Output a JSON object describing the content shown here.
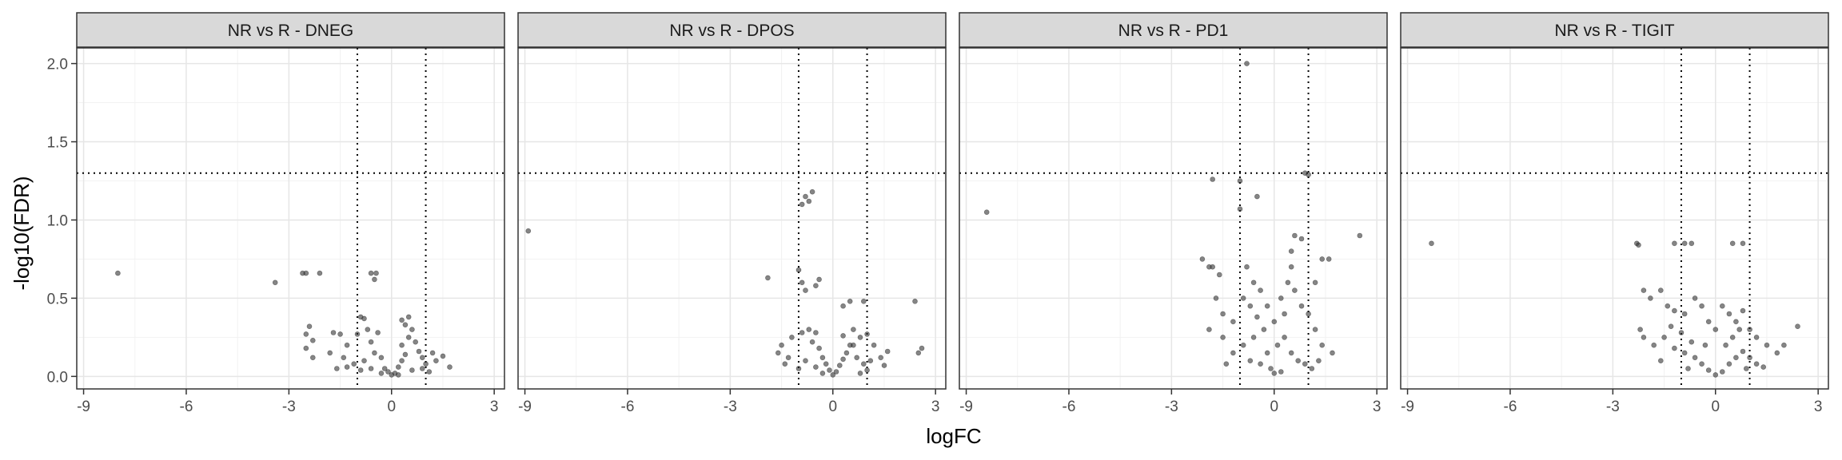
{
  "chart_data": {
    "type": "scatter",
    "title": "",
    "xlabel": "logFC",
    "ylabel": "-log10(FDR)",
    "xlim": [
      -9.2,
      3.3
    ],
    "ylim": [
      -0.08,
      2.1
    ],
    "x_ticks": [
      "-9",
      "-6",
      "-3",
      "0",
      "3"
    ],
    "x_tick_values": [
      -9,
      -6,
      -3,
      0,
      3
    ],
    "y_ticks": [
      "0.0",
      "0.5",
      "1.0",
      "1.5",
      "2.0"
    ],
    "y_tick_values": [
      0.0,
      0.5,
      1.0,
      1.5,
      2.0
    ],
    "reference_lines": {
      "fdr_threshold": 1.3,
      "logfc_low": -1,
      "logfc_high": 1
    },
    "point_color": "#333333",
    "point_opacity": 0.6,
    "panels": [
      {
        "label": "NR vs R - DNEG",
        "points": [
          [
            -8.0,
            0.66
          ],
          [
            -3.4,
            0.6
          ],
          [
            -2.6,
            0.66
          ],
          [
            -2.5,
            0.66
          ],
          [
            -2.1,
            0.66
          ],
          [
            -0.6,
            0.66
          ],
          [
            -0.5,
            0.62
          ],
          [
            -0.45,
            0.66
          ],
          [
            -2.4,
            0.32
          ],
          [
            -2.5,
            0.27
          ],
          [
            -2.3,
            0.23
          ],
          [
            -2.5,
            0.18
          ],
          [
            -2.3,
            0.12
          ],
          [
            -1.7,
            0.28
          ],
          [
            -1.5,
            0.27
          ],
          [
            -1.3,
            0.2
          ],
          [
            -1.8,
            0.15
          ],
          [
            -1.4,
            0.12
          ],
          [
            -0.9,
            0.38
          ],
          [
            -0.8,
            0.37
          ],
          [
            -0.7,
            0.3
          ],
          [
            -1.0,
            0.27
          ],
          [
            -0.6,
            0.22
          ],
          [
            -0.4,
            0.28
          ],
          [
            -0.5,
            0.15
          ],
          [
            -0.8,
            0.1
          ],
          [
            -1.1,
            0.08
          ],
          [
            -0.3,
            0.12
          ],
          [
            -0.2,
            0.05
          ],
          [
            -0.1,
            0.03
          ],
          [
            0.0,
            0.01
          ],
          [
            0.1,
            0.02
          ],
          [
            0.2,
            0.06
          ],
          [
            0.3,
            0.1
          ],
          [
            0.4,
            0.14
          ],
          [
            0.3,
            0.2
          ],
          [
            0.5,
            0.25
          ],
          [
            0.4,
            0.33
          ],
          [
            0.6,
            0.3
          ],
          [
            0.7,
            0.22
          ],
          [
            0.8,
            0.16
          ],
          [
            0.9,
            0.12
          ],
          [
            1.0,
            0.08
          ],
          [
            0.5,
            0.38
          ],
          [
            0.3,
            0.36
          ],
          [
            1.2,
            0.15
          ],
          [
            1.3,
            0.1
          ],
          [
            1.5,
            0.13
          ],
          [
            1.7,
            0.06
          ],
          [
            -0.6,
            0.05
          ],
          [
            -0.9,
            0.04
          ],
          [
            -1.3,
            0.06
          ],
          [
            -1.6,
            0.05
          ],
          [
            0.6,
            0.04
          ],
          [
            0.9,
            0.05
          ],
          [
            1.1,
            0.03
          ],
          [
            -0.3,
            0.02
          ],
          [
            0.2,
            0.01
          ]
        ]
      },
      {
        "label": "NR vs R - DPOS",
        "points": [
          [
            -8.9,
            0.93
          ],
          [
            -1.9,
            0.63
          ],
          [
            -1.0,
            0.68
          ],
          [
            -0.8,
            0.55
          ],
          [
            -0.9,
            0.6
          ],
          [
            -0.5,
            0.58
          ],
          [
            -0.4,
            0.62
          ],
          [
            -0.6,
            1.18
          ],
          [
            -0.8,
            1.15
          ],
          [
            -0.9,
            1.1
          ],
          [
            -0.7,
            1.12
          ],
          [
            2.4,
            0.48
          ],
          [
            0.5,
            0.48
          ],
          [
            0.3,
            0.45
          ],
          [
            0.9,
            0.48
          ],
          [
            2.6,
            0.18
          ],
          [
            2.5,
            0.15
          ],
          [
            1.6,
            0.16
          ],
          [
            1.4,
            0.12
          ],
          [
            1.2,
            0.2
          ],
          [
            1.0,
            0.27
          ],
          [
            0.8,
            0.25
          ],
          [
            0.6,
            0.2
          ],
          [
            -1.5,
            0.2
          ],
          [
            -1.6,
            0.15
          ],
          [
            -1.3,
            0.12
          ],
          [
            -1.2,
            0.25
          ],
          [
            -0.9,
            0.28
          ],
          [
            -0.6,
            0.22
          ],
          [
            -0.4,
            0.18
          ],
          [
            -0.3,
            0.12
          ],
          [
            -0.2,
            0.08
          ],
          [
            -0.1,
            0.04
          ],
          [
            0.0,
            0.01
          ],
          [
            0.1,
            0.03
          ],
          [
            0.2,
            0.07
          ],
          [
            0.3,
            0.11
          ],
          [
            0.4,
            0.15
          ],
          [
            0.5,
            0.2
          ],
          [
            0.7,
            0.12
          ],
          [
            0.9,
            0.08
          ],
          [
            1.1,
            0.1
          ],
          [
            -0.5,
            0.06
          ],
          [
            -0.8,
            0.1
          ],
          [
            -1.0,
            0.05
          ],
          [
            -0.7,
            0.3
          ],
          [
            -0.5,
            0.28
          ],
          [
            0.3,
            0.26
          ],
          [
            0.6,
            0.3
          ],
          [
            1.0,
            0.04
          ],
          [
            0.8,
            0.02
          ],
          [
            -0.3,
            0.02
          ],
          [
            -1.4,
            0.08
          ],
          [
            1.5,
            0.07
          ]
        ]
      },
      {
        "label": "NR vs R - PD1",
        "points": [
          [
            -8.4,
            1.05
          ],
          [
            -0.8,
            2.0
          ],
          [
            -1.8,
            1.26
          ],
          [
            -1.0,
            1.25
          ],
          [
            -0.5,
            1.15
          ],
          [
            -1.0,
            1.07
          ],
          [
            0.9,
            1.3
          ],
          [
            1.0,
            1.29
          ],
          [
            2.5,
            0.9
          ],
          [
            1.6,
            0.75
          ],
          [
            1.4,
            0.75
          ],
          [
            1.2,
            0.6
          ],
          [
            0.8,
            0.88
          ],
          [
            0.6,
            0.9
          ],
          [
            0.5,
            0.8
          ],
          [
            -2.1,
            0.75
          ],
          [
            -1.9,
            0.7
          ],
          [
            -1.8,
            0.7
          ],
          [
            -1.6,
            0.65
          ],
          [
            -1.7,
            0.5
          ],
          [
            -1.5,
            0.4
          ],
          [
            -1.9,
            0.3
          ],
          [
            -1.5,
            0.25
          ],
          [
            -1.2,
            0.35
          ],
          [
            -0.9,
            0.5
          ],
          [
            -0.8,
            0.7
          ],
          [
            -0.6,
            0.6
          ],
          [
            -0.4,
            0.55
          ],
          [
            -0.2,
            0.45
          ],
          [
            0.0,
            0.35
          ],
          [
            0.2,
            0.5
          ],
          [
            0.4,
            0.6
          ],
          [
            0.5,
            0.7
          ],
          [
            0.6,
            0.55
          ],
          [
            0.8,
            0.45
          ],
          [
            1.0,
            0.4
          ],
          [
            1.2,
            0.3
          ],
          [
            1.4,
            0.2
          ],
          [
            1.7,
            0.15
          ],
          [
            -0.3,
            0.3
          ],
          [
            -0.6,
            0.25
          ],
          [
            -0.9,
            0.2
          ],
          [
            -1.2,
            0.15
          ],
          [
            -0.2,
            0.15
          ],
          [
            0.1,
            0.2
          ],
          [
            0.3,
            0.25
          ],
          [
            0.5,
            0.15
          ],
          [
            0.7,
            0.1
          ],
          [
            0.9,
            0.08
          ],
          [
            -0.1,
            0.05
          ],
          [
            0.0,
            0.02
          ],
          [
            0.2,
            0.03
          ],
          [
            -0.4,
            0.08
          ],
          [
            -0.7,
            0.1
          ],
          [
            1.1,
            0.05
          ],
          [
            1.3,
            0.1
          ],
          [
            -1.4,
            0.08
          ],
          [
            -0.5,
            0.38
          ],
          [
            0.3,
            0.4
          ],
          [
            -0.7,
            0.45
          ]
        ]
      },
      {
        "label": "NR vs R - TIGIT",
        "points": [
          [
            -8.3,
            0.85
          ],
          [
            -2.3,
            0.85
          ],
          [
            -2.25,
            0.84
          ],
          [
            -1.2,
            0.85
          ],
          [
            -0.9,
            0.85
          ],
          [
            -0.7,
            0.85
          ],
          [
            0.5,
            0.85
          ],
          [
            0.8,
            0.85
          ],
          [
            -2.1,
            0.55
          ],
          [
            -1.9,
            0.5
          ],
          [
            -1.6,
            0.55
          ],
          [
            -1.4,
            0.45
          ],
          [
            -1.2,
            0.42
          ],
          [
            -0.9,
            0.4
          ],
          [
            -0.6,
            0.5
          ],
          [
            -0.4,
            0.45
          ],
          [
            -0.2,
            0.35
          ],
          [
            0.0,
            0.3
          ],
          [
            0.2,
            0.45
          ],
          [
            0.4,
            0.4
          ],
          [
            0.6,
            0.35
          ],
          [
            0.8,
            0.42
          ],
          [
            1.0,
            0.3
          ],
          [
            1.2,
            0.25
          ],
          [
            1.5,
            0.2
          ],
          [
            1.8,
            0.15
          ],
          [
            2.0,
            0.2
          ],
          [
            2.4,
            0.32
          ],
          [
            -2.2,
            0.3
          ],
          [
            -2.1,
            0.25
          ],
          [
            -1.8,
            0.2
          ],
          [
            -1.5,
            0.25
          ],
          [
            -1.2,
            0.18
          ],
          [
            -0.9,
            0.15
          ],
          [
            -0.6,
            0.12
          ],
          [
            -0.4,
            0.08
          ],
          [
            -0.2,
            0.04
          ],
          [
            0.0,
            0.01
          ],
          [
            0.2,
            0.03
          ],
          [
            0.4,
            0.08
          ],
          [
            0.6,
            0.12
          ],
          [
            0.8,
            0.16
          ],
          [
            1.0,
            0.12
          ],
          [
            1.2,
            0.08
          ],
          [
            -1.0,
            0.28
          ],
          [
            -0.7,
            0.22
          ],
          [
            0.3,
            0.2
          ],
          [
            0.5,
            0.25
          ],
          [
            0.7,
            0.3
          ],
          [
            -0.3,
            0.2
          ],
          [
            -1.3,
            0.32
          ],
          [
            0.9,
            0.05
          ],
          [
            -0.8,
            0.05
          ],
          [
            1.4,
            0.06
          ],
          [
            -1.6,
            0.1
          ]
        ]
      }
    ]
  }
}
